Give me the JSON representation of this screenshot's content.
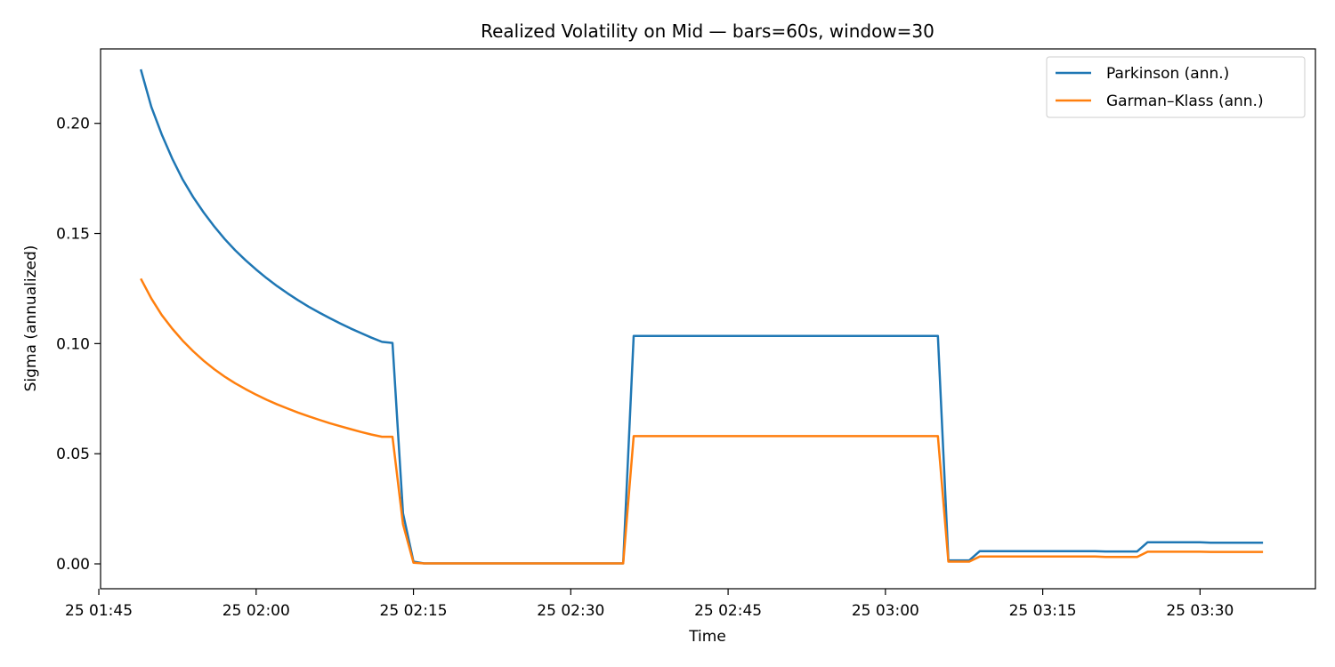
{
  "chart_data": {
    "type": "line",
    "title": "Realized Volatility on Mid — bars=60s, window=30",
    "xlabel": "Time",
    "ylabel": "Sigma (annualized)",
    "x_axis": {
      "type": "time",
      "range": [
        "01:45:10",
        "03:41:00"
      ],
      "ticks": [
        {
          "t": "01:45",
          "label": "25 01:45"
        },
        {
          "t": "02:00",
          "label": "25 02:00"
        },
        {
          "t": "02:15",
          "label": "25 02:15"
        },
        {
          "t": "02:30",
          "label": "25 02:30"
        },
        {
          "t": "02:45",
          "label": "25 02:45"
        },
        {
          "t": "03:00",
          "label": "25 03:00"
        },
        {
          "t": "03:15",
          "label": "25 03:15"
        },
        {
          "t": "03:30",
          "label": "25 03:30"
        }
      ]
    },
    "y_axis": {
      "range": [
        -0.0113,
        0.2338
      ],
      "ticks": [
        {
          "v": 0.0,
          "label": "0.00"
        },
        {
          "v": 0.05,
          "label": "0.05"
        },
        {
          "v": 0.1,
          "label": "0.10"
        },
        {
          "v": 0.15,
          "label": "0.15"
        },
        {
          "v": 0.2,
          "label": "0.20"
        }
      ]
    },
    "grid": false,
    "legend": "top-right",
    "series": [
      {
        "name": "Parkinson (ann.)",
        "color": "#1f77b4",
        "points": [
          [
            "01:49",
            0.2245
          ],
          [
            "01:50",
            0.2075
          ],
          [
            "01:51",
            0.195
          ],
          [
            "01:52",
            0.184
          ],
          [
            "01:53",
            0.1745
          ],
          [
            "01:54",
            0.1665
          ],
          [
            "01:55",
            0.1595
          ],
          [
            "01:56",
            0.1532
          ],
          [
            "01:57",
            0.1475
          ],
          [
            "01:58",
            0.1424
          ],
          [
            "01:59",
            0.1378
          ],
          [
            "02:00",
            0.1336
          ],
          [
            "02:01",
            0.1297
          ],
          [
            "02:02",
            0.1261
          ],
          [
            "02:03",
            0.1228
          ],
          [
            "02:04",
            0.1197
          ],
          [
            "02:05",
            0.1168
          ],
          [
            "02:06",
            0.1141
          ],
          [
            "02:07",
            0.1116
          ],
          [
            "02:08",
            0.1092
          ],
          [
            "02:09",
            0.1069
          ],
          [
            "02:10",
            0.1048
          ],
          [
            "02:11",
            0.1027
          ],
          [
            "02:12",
            0.1008
          ],
          [
            "02:13",
            0.1003
          ],
          [
            "02:14",
            0.023
          ],
          [
            "02:15",
            0.001
          ],
          [
            "02:16",
            0.0002
          ],
          [
            "02:35",
            0.0002
          ],
          [
            "02:36",
            0.1035
          ],
          [
            "03:05",
            0.1035
          ],
          [
            "03:06",
            0.0016
          ],
          [
            "03:08",
            0.0016
          ],
          [
            "03:09",
            0.0058
          ],
          [
            "03:20",
            0.0058
          ],
          [
            "03:21",
            0.0056
          ],
          [
            "03:24",
            0.0056
          ],
          [
            "03:25",
            0.0098
          ],
          [
            "03:30",
            0.0098
          ],
          [
            "03:31",
            0.0096
          ],
          [
            "03:36",
            0.0096
          ]
        ]
      },
      {
        "name": "Garman–Klass (ann.)",
        "color": "#ff7f0e",
        "points": [
          [
            "01:49",
            0.1295
          ],
          [
            "01:50",
            0.1205
          ],
          [
            "01:51",
            0.113
          ],
          [
            "01:52",
            0.1068
          ],
          [
            "01:53",
            0.1013
          ],
          [
            "01:54",
            0.0965
          ],
          [
            "01:55",
            0.0922
          ],
          [
            "01:56",
            0.0884
          ],
          [
            "01:57",
            0.085
          ],
          [
            "01:58",
            0.082
          ],
          [
            "01:59",
            0.0793
          ],
          [
            "02:00",
            0.0768
          ],
          [
            "02:01",
            0.0745
          ],
          [
            "02:02",
            0.0724
          ],
          [
            "02:03",
            0.0705
          ],
          [
            "02:04",
            0.0687
          ],
          [
            "02:05",
            0.067
          ],
          [
            "02:06",
            0.0654
          ],
          [
            "02:07",
            0.0639
          ],
          [
            "02:08",
            0.0625
          ],
          [
            "02:09",
            0.0612
          ],
          [
            "02:10",
            0.0599
          ],
          [
            "02:11",
            0.0587
          ],
          [
            "02:12",
            0.0577
          ],
          [
            "02:13",
            0.0577
          ],
          [
            "02:14",
            0.018
          ],
          [
            "02:15",
            0.0005
          ],
          [
            "02:16",
            0.0002
          ],
          [
            "02:35",
            0.0002
          ],
          [
            "02:36",
            0.058
          ],
          [
            "03:05",
            0.058
          ],
          [
            "03:06",
            0.001
          ],
          [
            "03:08",
            0.001
          ],
          [
            "03:09",
            0.0033
          ],
          [
            "03:20",
            0.0033
          ],
          [
            "03:21",
            0.0031
          ],
          [
            "03:24",
            0.0031
          ],
          [
            "03:25",
            0.0055
          ],
          [
            "03:30",
            0.0055
          ],
          [
            "03:31",
            0.0054
          ],
          [
            "03:36",
            0.0054
          ]
        ]
      }
    ]
  }
}
